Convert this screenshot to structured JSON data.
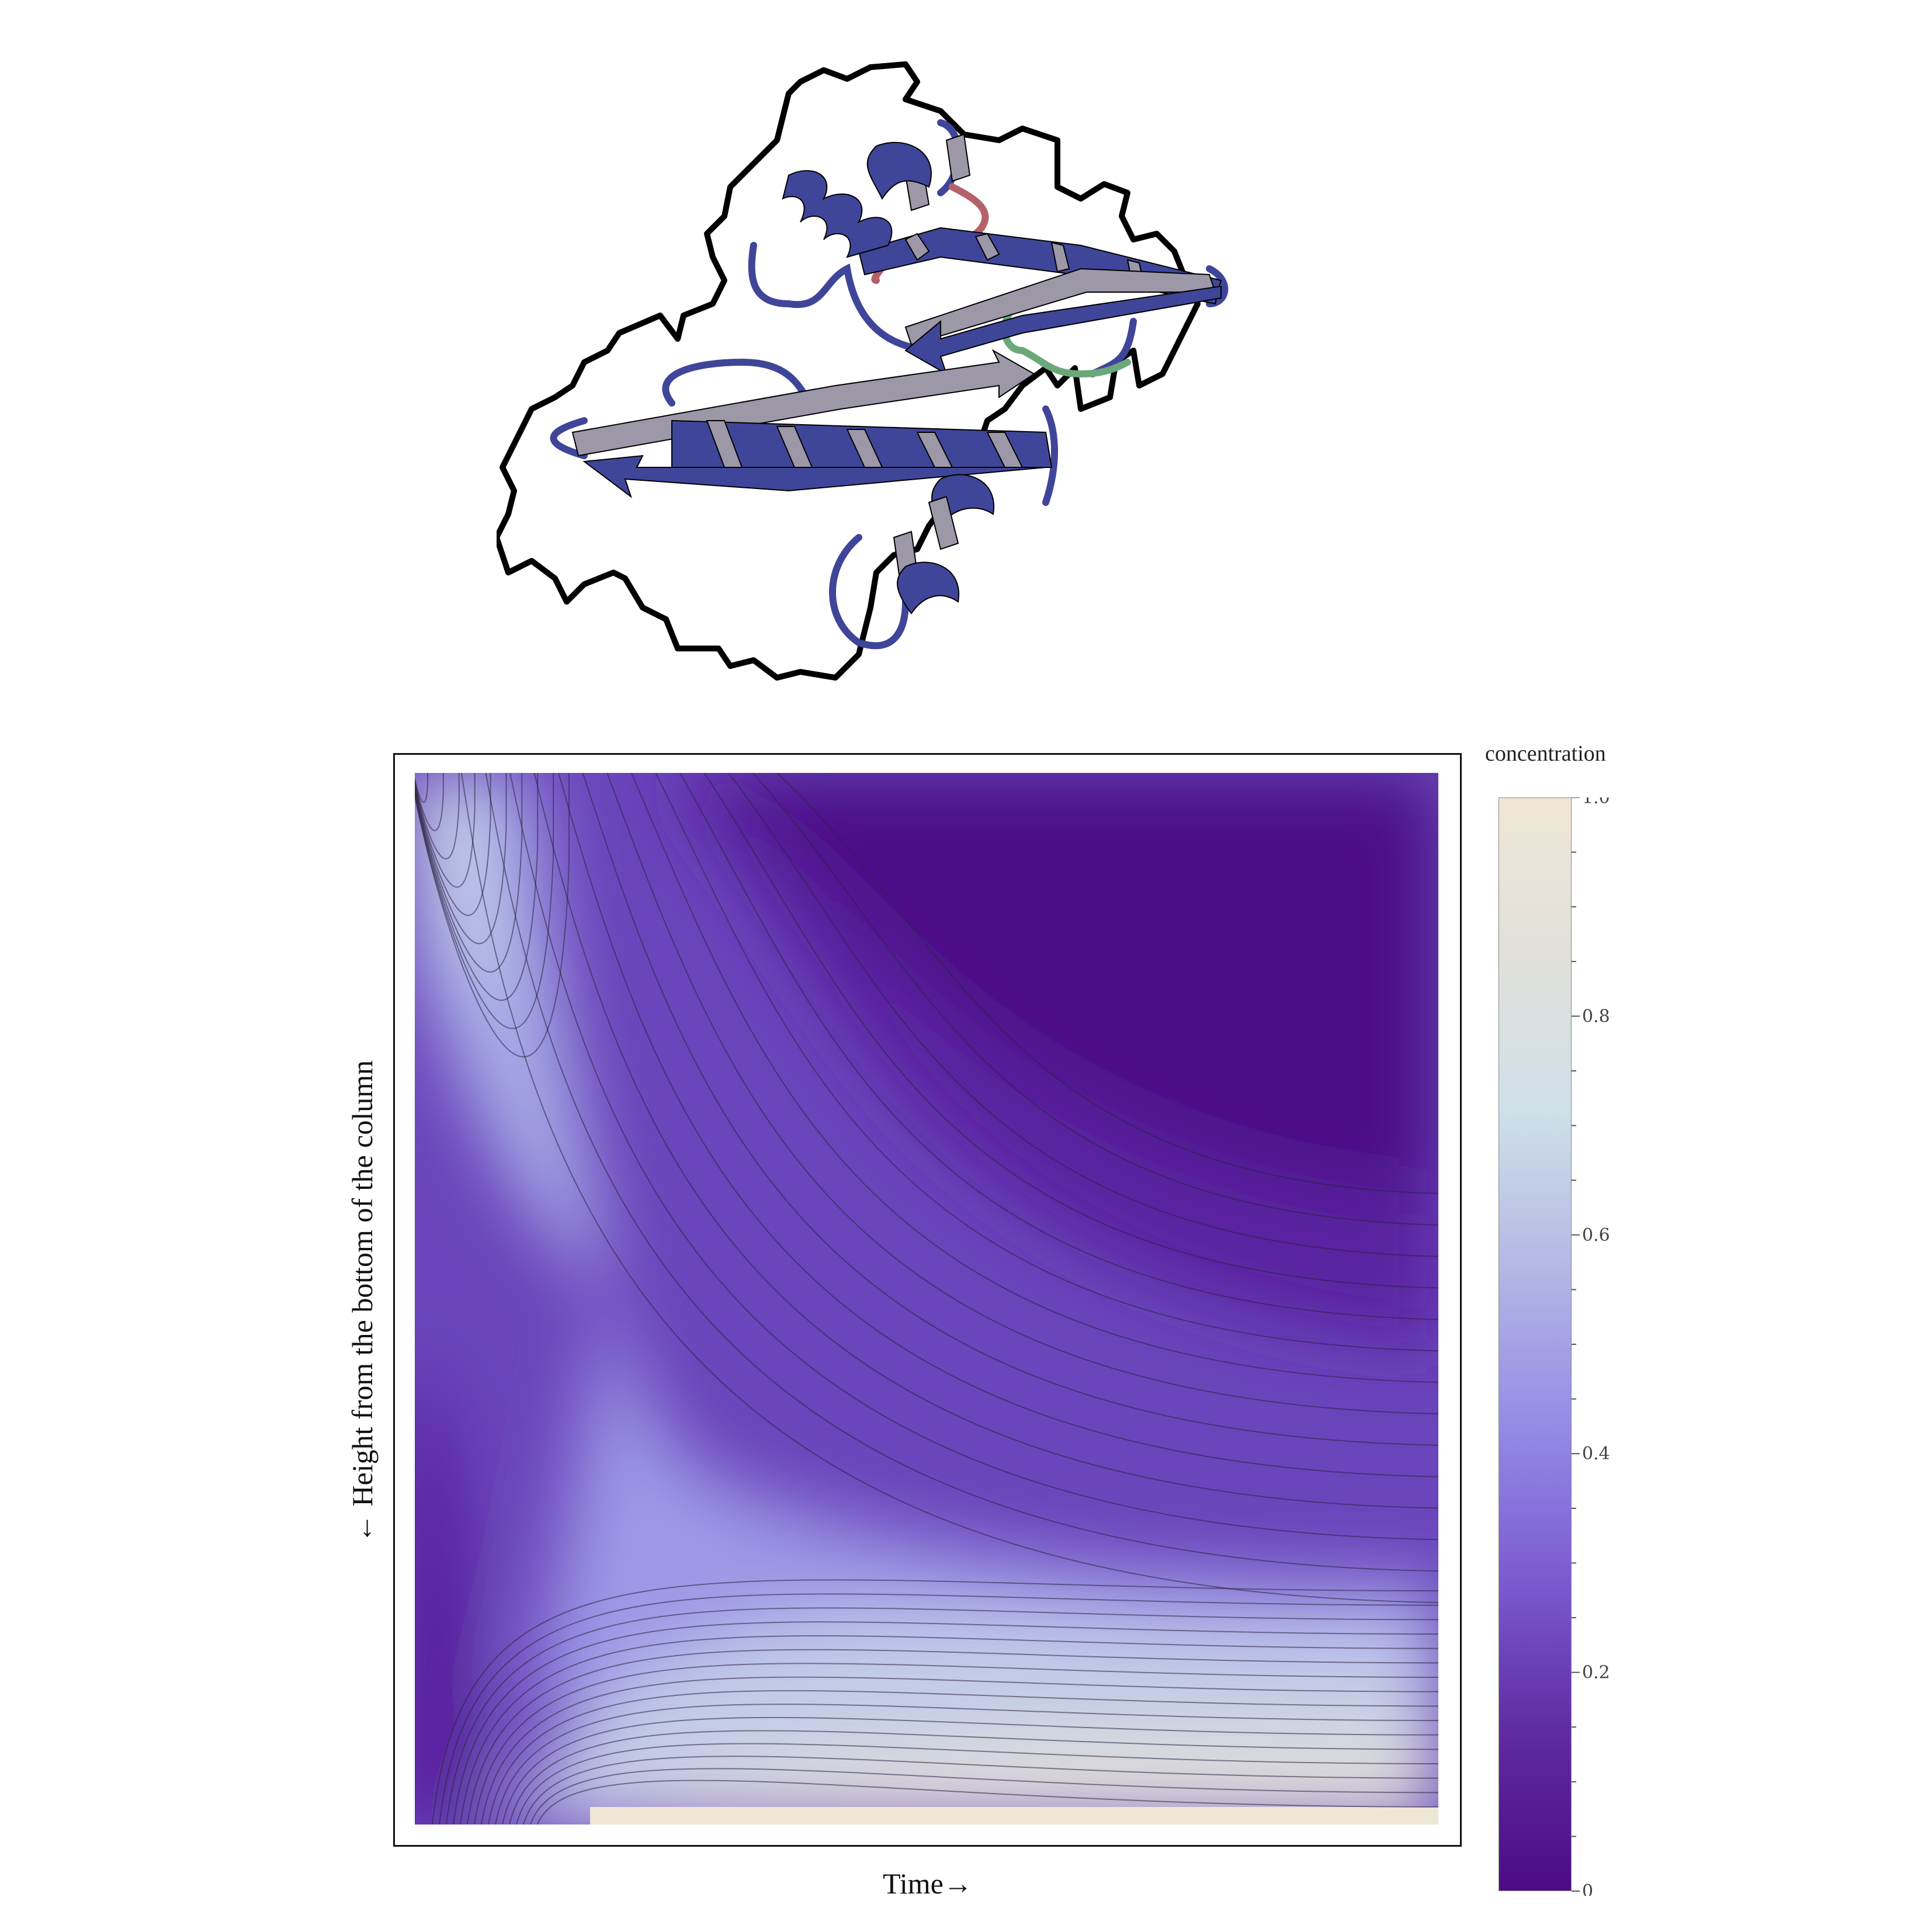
{
  "chart_data": {
    "type": "contour",
    "xlabel": "Time→",
    "ylabel": "← Height from the bottom of the column",
    "colorbar": {
      "title": "concentration",
      "range": [
        0,
        1
      ],
      "ticks": [
        0,
        0.2,
        0.4,
        0.6,
        0.8,
        1.0
      ],
      "tick_labels": [
        "0",
        "0.2",
        "0.4",
        "0.6",
        "0.8",
        "1.0"
      ],
      "colors": [
        "#4b0c86",
        "#5f2aa2",
        "#7b5bd0",
        "#958ce6",
        "#b3b8e4",
        "#cfe0e8",
        "#e1e0da",
        "#efe7d6"
      ]
    },
    "contour_levels": 40,
    "xticks_shown": false,
    "yticks_shown": false,
    "illustration": {
      "subject": "protein ribbon diagram",
      "colors": [
        "#3f4699",
        "#9c98a8",
        "#b5606a",
        "#6aa879",
        "#000000"
      ]
    }
  }
}
